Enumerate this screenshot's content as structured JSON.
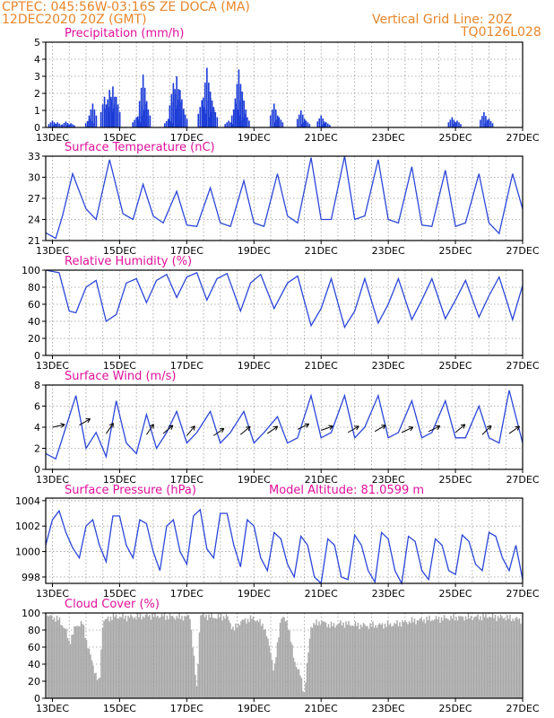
{
  "header": {
    "station": "CPTEC:   045:56W-03:16S   ZE DOCA (MA)",
    "run": "12DEC2020 20Z (GMT)",
    "grid_note": "Vertical Grid Line: 20Z",
    "code": "TQ0126L028"
  },
  "colors": {
    "header": "#e8862a",
    "title": "#e0109a",
    "line": "#2b46d8",
    "bars": "#1a3bd6",
    "cloud": "#a9a9a9",
    "grid": "#9a9a9a"
  },
  "chart_data": [
    {
      "id": "precip",
      "type": "bar",
      "title": "Precipitation (mm/h)",
      "ylim": [
        0,
        5
      ],
      "yticks": [
        0,
        1,
        2,
        3,
        4,
        5
      ],
      "xticks": [
        "13DEC",
        "15DEC",
        "17DEC",
        "19DEC",
        "21DEC",
        "23DEC",
        "25DEC",
        "27DEC"
      ],
      "x_day_range": [
        12.8,
        27.0
      ],
      "events": [
        [
          13.0,
          0.4
        ],
        [
          13.15,
          0.3
        ],
        [
          13.4,
          0.35
        ],
        [
          13.55,
          0.25
        ],
        [
          14.1,
          0.5
        ],
        [
          14.2,
          1.4
        ],
        [
          14.55,
          1.8
        ],
        [
          14.7,
          2.2
        ],
        [
          14.8,
          2.4
        ],
        [
          14.9,
          1.8
        ],
        [
          15.5,
          0.6
        ],
        [
          15.65,
          1.3
        ],
        [
          15.7,
          3.1
        ],
        [
          15.8,
          1.4
        ],
        [
          16.45,
          0.5
        ],
        [
          16.6,
          2.6
        ],
        [
          16.7,
          3.0
        ],
        [
          16.8,
          2.2
        ],
        [
          16.9,
          1.0
        ],
        [
          17.45,
          1.6
        ],
        [
          17.6,
          3.5
        ],
        [
          17.7,
          2.1
        ],
        [
          17.8,
          1.2
        ],
        [
          18.25,
          0.4
        ],
        [
          18.45,
          1.4
        ],
        [
          18.55,
          3.4
        ],
        [
          18.65,
          2.1
        ],
        [
          18.75,
          0.8
        ],
        [
          19.6,
          1.4
        ],
        [
          19.75,
          0.6
        ],
        [
          20.4,
          1.0
        ],
        [
          20.55,
          0.4
        ],
        [
          21.0,
          0.7
        ],
        [
          21.15,
          0.3
        ],
        [
          24.9,
          0.6
        ],
        [
          25.05,
          0.4
        ],
        [
          25.85,
          0.9
        ],
        [
          26.0,
          0.5
        ]
      ]
    },
    {
      "id": "temp",
      "type": "line",
      "title": "Surface Temperature (nC)",
      "ylim": [
        21,
        33
      ],
      "yticks": [
        21,
        24,
        27,
        30,
        33
      ],
      "xticks": [
        "13DEC",
        "15DEC",
        "17DEC",
        "19DEC",
        "21DEC",
        "23DEC",
        "25DEC",
        "27DEC"
      ],
      "x_day_range": [
        12.8,
        27.0
      ],
      "points": [
        [
          12.8,
          22.1
        ],
        [
          13.1,
          21.3
        ],
        [
          13.3,
          24.5
        ],
        [
          13.6,
          30.5
        ],
        [
          14.0,
          25.5
        ],
        [
          14.3,
          24.0
        ],
        [
          14.7,
          32.5
        ],
        [
          15.1,
          24.8
        ],
        [
          15.4,
          24.0
        ],
        [
          15.7,
          29.0
        ],
        [
          16.0,
          24.5
        ],
        [
          16.3,
          23.5
        ],
        [
          16.7,
          28.0
        ],
        [
          17.0,
          23.2
        ],
        [
          17.3,
          23.0
        ],
        [
          17.7,
          28.5
        ],
        [
          18.0,
          23.5
        ],
        [
          18.3,
          23.0
        ],
        [
          18.7,
          29.5
        ],
        [
          19.0,
          23.5
        ],
        [
          19.3,
          23.0
        ],
        [
          19.7,
          30.5
        ],
        [
          20.0,
          24.5
        ],
        [
          20.3,
          23.5
        ],
        [
          20.7,
          32.8
        ],
        [
          21.0,
          24.0
        ],
        [
          21.3,
          24.0
        ],
        [
          21.7,
          33.0
        ],
        [
          22.0,
          24.0
        ],
        [
          22.3,
          24.5
        ],
        [
          22.7,
          32.5
        ],
        [
          23.0,
          24.0
        ],
        [
          23.3,
          23.5
        ],
        [
          23.7,
          31.5
        ],
        [
          24.0,
          23.2
        ],
        [
          24.3,
          23.0
        ],
        [
          24.7,
          31.0
        ],
        [
          25.0,
          23.0
        ],
        [
          25.3,
          23.5
        ],
        [
          25.7,
          30.5
        ],
        [
          26.0,
          23.5
        ],
        [
          26.3,
          22.0
        ],
        [
          26.7,
          30.5
        ],
        [
          27.0,
          25.5
        ]
      ]
    },
    {
      "id": "rh",
      "type": "line",
      "title": "Relative Humidity (%)",
      "ylim": [
        0,
        100
      ],
      "yticks": [
        0,
        20,
        40,
        60,
        80,
        100
      ],
      "xticks": [
        "13DEC",
        "15DEC",
        "17DEC",
        "19DEC",
        "21DEC",
        "23DEC",
        "25DEC",
        "27DEC"
      ],
      "x_day_range": [
        12.8,
        27.0
      ],
      "points": [
        [
          12.8,
          100
        ],
        [
          13.2,
          97
        ],
        [
          13.5,
          52
        ],
        [
          13.7,
          50
        ],
        [
          14.0,
          80
        ],
        [
          14.3,
          88
        ],
        [
          14.6,
          40
        ],
        [
          14.9,
          48
        ],
        [
          15.2,
          85
        ],
        [
          15.5,
          90
        ],
        [
          15.8,
          62
        ],
        [
          16.1,
          88
        ],
        [
          16.4,
          95
        ],
        [
          16.7,
          68
        ],
        [
          17.0,
          92
        ],
        [
          17.3,
          97
        ],
        [
          17.6,
          65
        ],
        [
          17.9,
          90
        ],
        [
          18.2,
          96
        ],
        [
          18.6,
          52
        ],
        [
          18.9,
          85
        ],
        [
          19.2,
          95
        ],
        [
          19.6,
          55
        ],
        [
          20.0,
          85
        ],
        [
          20.3,
          93
        ],
        [
          20.7,
          35
        ],
        [
          21.0,
          55
        ],
        [
          21.3,
          90
        ],
        [
          21.7,
          33
        ],
        [
          22.0,
          52
        ],
        [
          22.3,
          90
        ],
        [
          22.7,
          38
        ],
        [
          23.0,
          60
        ],
        [
          23.3,
          90
        ],
        [
          23.7,
          42
        ],
        [
          24.0,
          65
        ],
        [
          24.3,
          90
        ],
        [
          24.7,
          43
        ],
        [
          25.0,
          65
        ],
        [
          25.3,
          88
        ],
        [
          25.7,
          45
        ],
        [
          26.0,
          70
        ],
        [
          26.3,
          92
        ],
        [
          26.7,
          42
        ],
        [
          27.0,
          82
        ]
      ]
    },
    {
      "id": "wind",
      "type": "line",
      "title": "Surface Wind (m/s)",
      "ylim": [
        0,
        8
      ],
      "yticks": [
        0,
        2,
        4,
        6,
        8
      ],
      "xticks": [
        "13DEC",
        "15DEC",
        "17DEC",
        "19DEC",
        "21DEC",
        "23DEC",
        "25DEC",
        "27DEC"
      ],
      "x_day_range": [
        12.8,
        27.0
      ],
      "points": [
        [
          12.8,
          1.5
        ],
        [
          13.1,
          1.0
        ],
        [
          13.4,
          4.0
        ],
        [
          13.7,
          7.0
        ],
        [
          14.0,
          2.0
        ],
        [
          14.3,
          3.5
        ],
        [
          14.6,
          1.2
        ],
        [
          14.9,
          6.5
        ],
        [
          15.2,
          2.5
        ],
        [
          15.5,
          1.5
        ],
        [
          15.8,
          5.2
        ],
        [
          16.1,
          2.0
        ],
        [
          16.4,
          3.5
        ],
        [
          16.7,
          5.5
        ],
        [
          17.0,
          2.5
        ],
        [
          17.3,
          3.5
        ],
        [
          17.7,
          5.5
        ],
        [
          18.0,
          2.5
        ],
        [
          18.3,
          3.5
        ],
        [
          18.7,
          5.5
        ],
        [
          19.0,
          2.5
        ],
        [
          19.3,
          3.5
        ],
        [
          19.7,
          5.0
        ],
        [
          20.0,
          2.5
        ],
        [
          20.3,
          3.0
        ],
        [
          20.7,
          7.0
        ],
        [
          21.0,
          3.0
        ],
        [
          21.3,
          3.5
        ],
        [
          21.7,
          7.0
        ],
        [
          22.0,
          3.0
        ],
        [
          22.3,
          4.0
        ],
        [
          22.7,
          7.0
        ],
        [
          23.0,
          3.0
        ],
        [
          23.3,
          3.5
        ],
        [
          23.7,
          6.5
        ],
        [
          24.0,
          3.0
        ],
        [
          24.3,
          3.5
        ],
        [
          24.7,
          6.5
        ],
        [
          25.0,
          3.0
        ],
        [
          25.3,
          3.0
        ],
        [
          25.7,
          6.0
        ],
        [
          26.0,
          3.0
        ],
        [
          26.3,
          2.5
        ],
        [
          26.6,
          7.5
        ],
        [
          27.0,
          2.5
        ]
      ],
      "arrows": [
        [
          13.0,
          4.0,
          258
        ],
        [
          13.8,
          4.2,
          240
        ],
        [
          14.6,
          3.4,
          215
        ],
        [
          15.8,
          3.3,
          215
        ],
        [
          16.3,
          3.4,
          230
        ],
        [
          17.0,
          3.2,
          220
        ],
        [
          17.8,
          3.2,
          235
        ],
        [
          18.6,
          3.3,
          230
        ],
        [
          19.4,
          3.4,
          235
        ],
        [
          20.3,
          3.8,
          245
        ],
        [
          21.0,
          3.7,
          250
        ],
        [
          21.8,
          3.5,
          240
        ],
        [
          22.6,
          3.6,
          240
        ],
        [
          23.4,
          3.5,
          245
        ],
        [
          24.2,
          3.6,
          245
        ],
        [
          25.0,
          3.5,
          230
        ],
        [
          25.8,
          3.3,
          225
        ],
        [
          26.6,
          3.4,
          235
        ]
      ]
    },
    {
      "id": "pressure",
      "type": "line",
      "title": "Surface Pressure (hPa)",
      "annotation": "Model Altitude: 81.0599 m",
      "ylim": [
        997.5,
        1004.2
      ],
      "yticks": [
        998,
        1000,
        1002,
        1004
      ],
      "xticks": [
        "13DEC",
        "15DEC",
        "17DEC",
        "19DEC",
        "21DEC",
        "23DEC",
        "25DEC",
        "27DEC"
      ],
      "x_day_range": [
        12.8,
        27.0
      ],
      "points": [
        [
          12.8,
          1000.5
        ],
        [
          13.0,
          1002.5
        ],
        [
          13.2,
          1003.2
        ],
        [
          13.4,
          1001.5
        ],
        [
          13.6,
          1000.3
        ],
        [
          13.8,
          999.5
        ],
        [
          14.0,
          1002.0
        ],
        [
          14.2,
          1002.5
        ],
        [
          14.4,
          1000.5
        ],
        [
          14.6,
          999.2
        ],
        [
          14.8,
          1002.8
        ],
        [
          15.0,
          1002.8
        ],
        [
          15.2,
          1000.5
        ],
        [
          15.4,
          999.5
        ],
        [
          15.6,
          1002.5
        ],
        [
          15.8,
          1002.2
        ],
        [
          16.0,
          1000.0
        ],
        [
          16.2,
          998.5
        ],
        [
          16.4,
          1002.0
        ],
        [
          16.6,
          1002.5
        ],
        [
          16.8,
          1000.0
        ],
        [
          17.0,
          999.0
        ],
        [
          17.2,
          1002.8
        ],
        [
          17.4,
          1003.3
        ],
        [
          17.6,
          1000.2
        ],
        [
          17.8,
          999.5
        ],
        [
          18.0,
          1003.0
        ],
        [
          18.2,
          1003.0
        ],
        [
          18.4,
          1000.5
        ],
        [
          18.6,
          998.8
        ],
        [
          18.8,
          1002.5
        ],
        [
          19.0,
          1002.0
        ],
        [
          19.2,
          999.5
        ],
        [
          19.4,
          998.5
        ],
        [
          19.6,
          1001.5
        ],
        [
          19.8,
          1001.0
        ],
        [
          20.0,
          999.0
        ],
        [
          20.2,
          998.0
        ],
        [
          20.4,
          1001.2
        ],
        [
          20.6,
          1000.5
        ],
        [
          20.8,
          998.0
        ],
        [
          21.0,
          997.5
        ],
        [
          21.2,
          1001.0
        ],
        [
          21.4,
          1000.5
        ],
        [
          21.6,
          998.0
        ],
        [
          21.8,
          997.8
        ],
        [
          22.0,
          1001.3
        ],
        [
          22.2,
          1000.5
        ],
        [
          22.4,
          998.5
        ],
        [
          22.6,
          997.6
        ],
        [
          22.8,
          1001.5
        ],
        [
          23.0,
          1001.0
        ],
        [
          23.2,
          998.5
        ],
        [
          23.4,
          997.5
        ],
        [
          23.6,
          1001.2
        ],
        [
          23.8,
          1000.8
        ],
        [
          24.0,
          998.5
        ],
        [
          24.2,
          997.8
        ],
        [
          24.4,
          1001.0
        ],
        [
          24.6,
          1000.5
        ],
        [
          24.8,
          998.5
        ],
        [
          25.0,
          998.2
        ],
        [
          25.2,
          1001.3
        ],
        [
          25.4,
          1000.8
        ],
        [
          25.6,
          999.0
        ],
        [
          25.8,
          998.5
        ],
        [
          26.0,
          1001.5
        ],
        [
          26.2,
          1001.2
        ],
        [
          26.4,
          999.5
        ],
        [
          26.6,
          998.5
        ],
        [
          26.8,
          1000.5
        ],
        [
          27.0,
          997.8
        ]
      ]
    },
    {
      "id": "cloud",
      "type": "area",
      "title": "Cloud Cover (%)",
      "ylim": [
        0,
        100
      ],
      "yticks": [
        0,
        20,
        40,
        60,
        80,
        100
      ],
      "xticks": [
        "13DEC",
        "15DEC",
        "17DEC",
        "19DEC",
        "21DEC",
        "23DEC",
        "25DEC",
        "27DEC"
      ],
      "x_day_range": [
        12.8,
        27.0
      ],
      "points": [
        [
          12.8,
          97
        ],
        [
          13.0,
          95
        ],
        [
          13.2,
          92
        ],
        [
          13.4,
          80
        ],
        [
          13.5,
          65
        ],
        [
          13.7,
          85
        ],
        [
          13.9,
          88
        ],
        [
          14.0,
          70
        ],
        [
          14.2,
          40
        ],
        [
          14.4,
          15
        ],
        [
          14.5,
          90
        ],
        [
          14.8,
          96
        ],
        [
          15.2,
          95
        ],
        [
          15.6,
          96
        ],
        [
          16.0,
          97
        ],
        [
          16.4,
          96
        ],
        [
          16.8,
          95
        ],
        [
          17.1,
          96
        ],
        [
          17.3,
          10
        ],
        [
          17.4,
          98
        ],
        [
          17.8,
          95
        ],
        [
          18.2,
          96
        ],
        [
          18.4,
          80
        ],
        [
          18.6,
          90
        ],
        [
          19.0,
          94
        ],
        [
          19.3,
          85
        ],
        [
          19.5,
          55
        ],
        [
          19.6,
          30
        ],
        [
          19.8,
          95
        ],
        [
          20.0,
          90
        ],
        [
          20.2,
          45
        ],
        [
          20.4,
          25
        ],
        [
          20.5,
          5
        ],
        [
          20.7,
          85
        ],
        [
          21.0,
          90
        ],
        [
          21.3,
          85
        ],
        [
          21.6,
          88
        ],
        [
          22.0,
          86
        ],
        [
          22.4,
          85
        ],
        [
          22.8,
          86
        ],
        [
          23.2,
          87
        ],
        [
          23.6,
          90
        ],
        [
          24.0,
          92
        ],
        [
          24.4,
          93
        ],
        [
          24.8,
          94
        ],
        [
          25.2,
          95
        ],
        [
          25.6,
          95
        ],
        [
          26.0,
          96
        ],
        [
          26.4,
          95
        ],
        [
          26.8,
          93
        ],
        [
          27.0,
          92
        ]
      ]
    }
  ]
}
